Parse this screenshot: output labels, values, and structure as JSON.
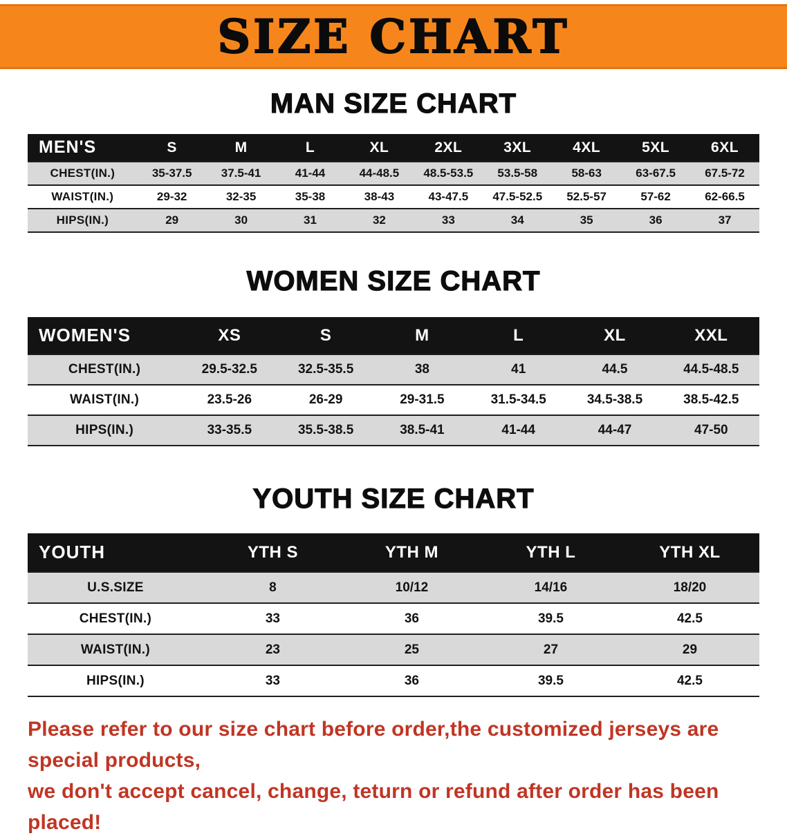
{
  "banner": {
    "title": "SIZE CHART"
  },
  "sections": [
    {
      "id": "men",
      "heading": "MAN SIZE CHART",
      "header": [
        "MEN'S",
        "S",
        "M",
        "L",
        "XL",
        "2XL",
        "3XL",
        "4XL",
        "5XL",
        "6XL"
      ],
      "rows": [
        {
          "label": "CHEST(IN.)",
          "values": [
            "35-37.5",
            "37.5-41",
            "41-44",
            "44-48.5",
            "48.5-53.5",
            "53.5-58",
            "58-63",
            "63-67.5",
            "67.5-72"
          ]
        },
        {
          "label": "WAIST(IN.)",
          "values": [
            "29-32",
            "32-35",
            "35-38",
            "38-43",
            "43-47.5",
            "47.5-52.5",
            "52.5-57",
            "57-62",
            "62-66.5"
          ]
        },
        {
          "label": "HIPS(IN.)",
          "values": [
            "29",
            "30",
            "31",
            "32",
            "33",
            "34",
            "35",
            "36",
            "37"
          ]
        }
      ]
    },
    {
      "id": "women",
      "heading": "WOMEN SIZE CHART",
      "header": [
        "WOMEN'S",
        "XS",
        "S",
        "M",
        "L",
        "XL",
        "XXL"
      ],
      "rows": [
        {
          "label": "CHEST(IN.)",
          "values": [
            "29.5-32.5",
            "32.5-35.5",
            "38",
            "41",
            "44.5",
            "44.5-48.5"
          ]
        },
        {
          "label": "WAIST(IN.)",
          "values": [
            "23.5-26",
            "26-29",
            "29-31.5",
            "31.5-34.5",
            "34.5-38.5",
            "38.5-42.5"
          ]
        },
        {
          "label": "HIPS(IN.)",
          "values": [
            "33-35.5",
            "35.5-38.5",
            "38.5-41",
            "41-44",
            "44-47",
            "47-50"
          ]
        }
      ]
    },
    {
      "id": "youth",
      "heading": "YOUTH SIZE CHART",
      "header": [
        "YOUTH",
        "YTH S",
        "YTH M",
        "YTH L",
        "YTH XL"
      ],
      "rows": [
        {
          "label": "U.S.SIZE",
          "values": [
            "8",
            "10/12",
            "14/16",
            "18/20"
          ]
        },
        {
          "label": "CHEST(IN.)",
          "values": [
            "33",
            "36",
            "39.5",
            "42.5"
          ]
        },
        {
          "label": "WAIST(IN.)",
          "values": [
            "23",
            "25",
            "27",
            "29"
          ]
        },
        {
          "label": "HIPS(IN.)",
          "values": [
            "33",
            "36",
            "39.5",
            "42.5"
          ]
        }
      ]
    }
  ],
  "disclaimer": {
    "line1": "Please refer to our size chart before order,the customized jerseys are special products,",
    "line2": "we don't accept cancel, change, teturn or refund after order has been placed!"
  },
  "colors": {
    "banner_orange": "#F6861C",
    "table_header_black": "#131313",
    "row_gray": "#D9D9D9",
    "disclaimer_red": "#C13524"
  }
}
